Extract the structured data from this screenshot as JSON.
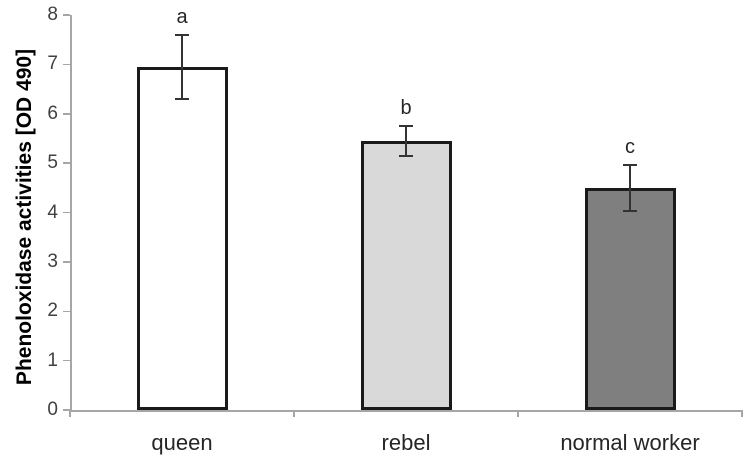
{
  "chart_data": {
    "type": "bar",
    "title": "",
    "xlabel": "",
    "ylabel": "Phenoloxidase activities [OD 490]",
    "categories": [
      "queen",
      "rebel",
      "normal worker"
    ],
    "values": [
      6.95,
      5.45,
      4.5
    ],
    "error_bars": [
      0.65,
      0.3,
      0.47
    ],
    "significance_letters": [
      "a",
      "b",
      "c"
    ],
    "ylim": [
      0,
      8
    ],
    "yticks": [
      0,
      1,
      2,
      3,
      4,
      5,
      6,
      7,
      8
    ],
    "grid": false,
    "legend_position": "none",
    "bar_fill_colors": [
      "#ffffff",
      "#d9d9d9",
      "#7f7f7f"
    ],
    "bar_border_color": "#1a1a1a",
    "axis_color": "#a6a6a6",
    "error_bar_color": "#333333"
  }
}
